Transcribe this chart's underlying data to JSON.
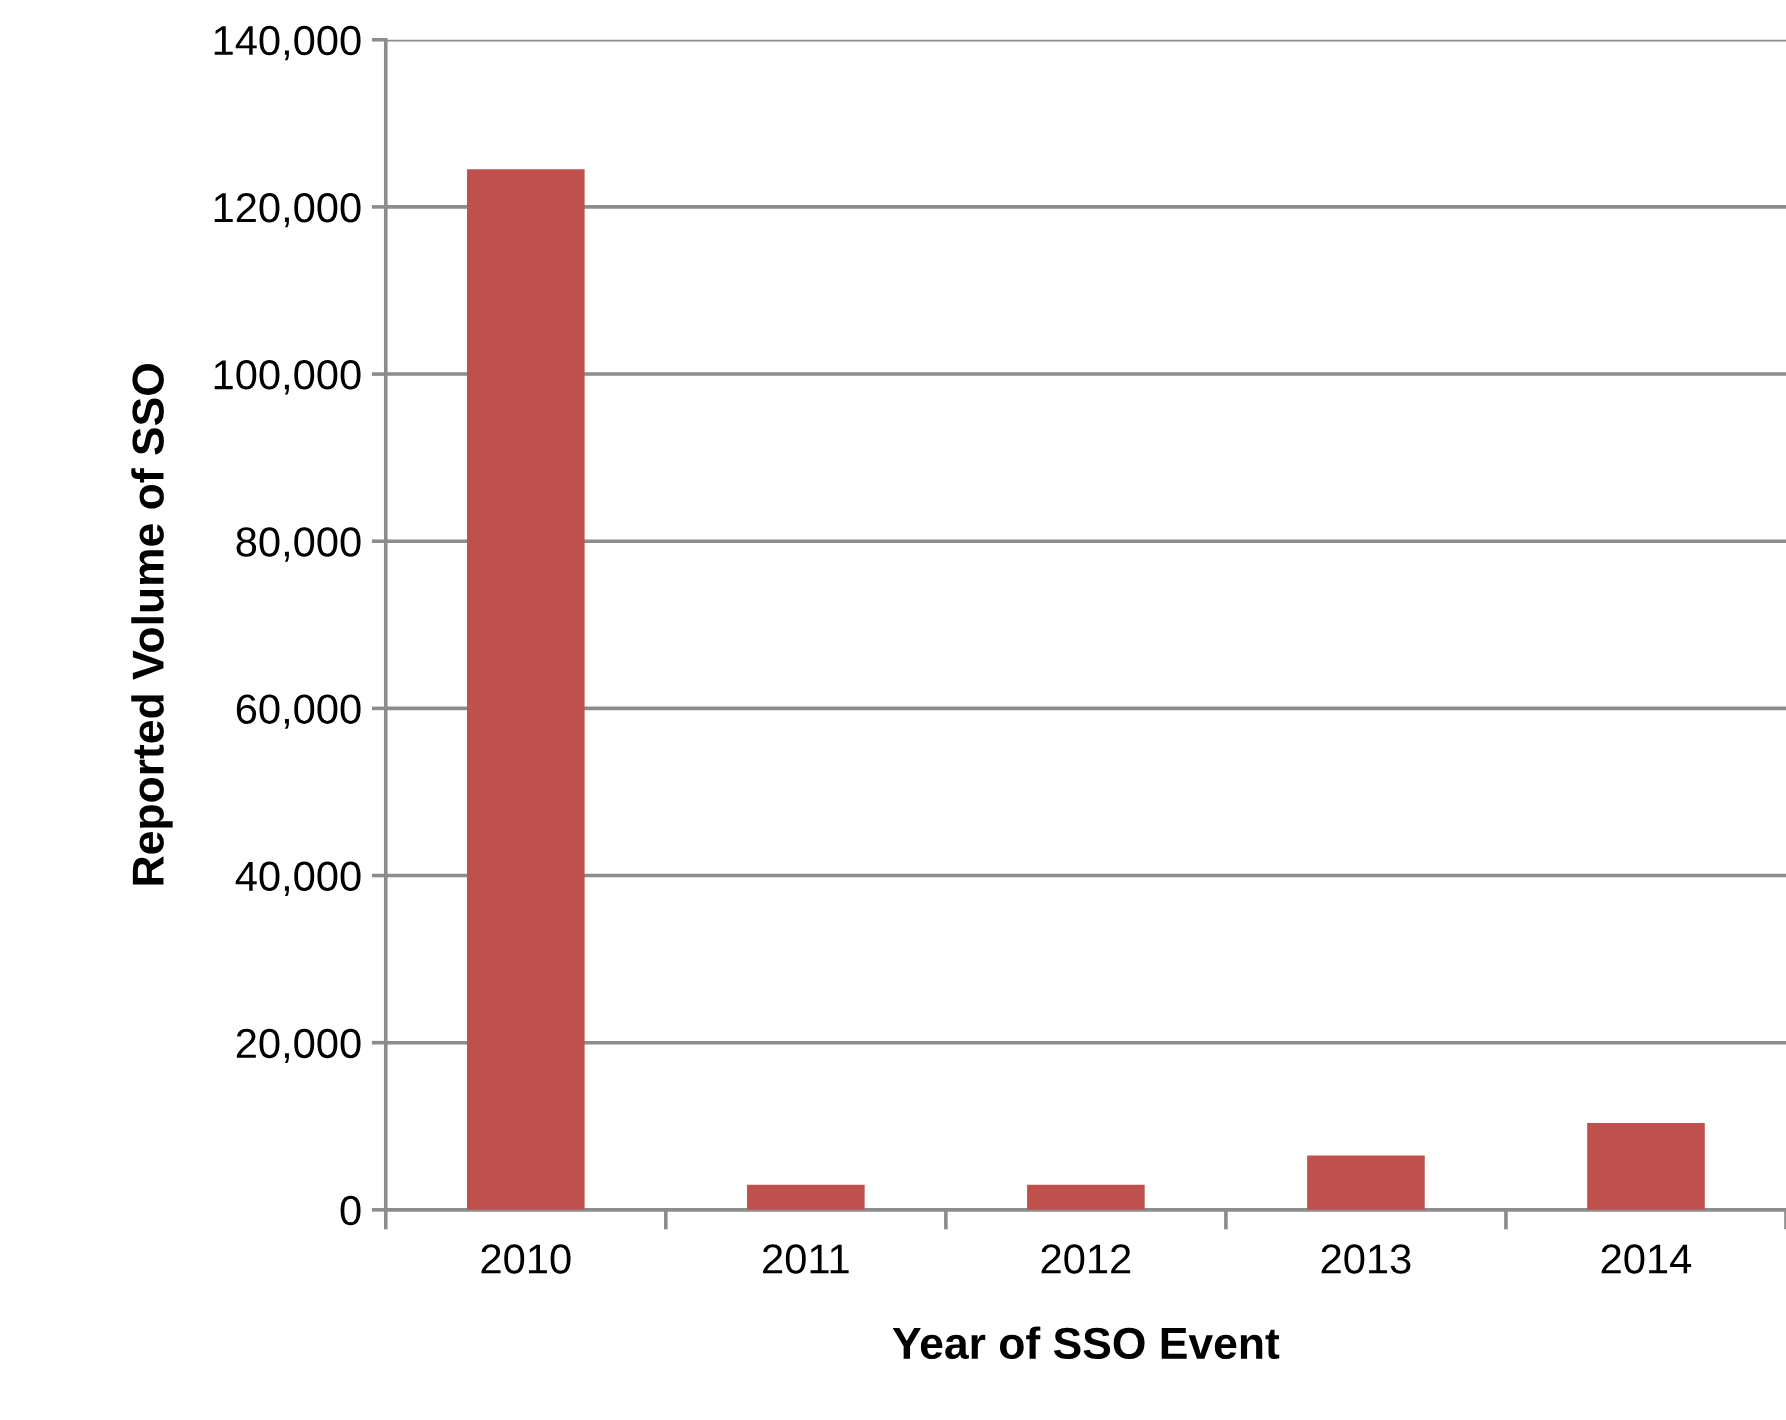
{
  "chart_data": {
    "type": "bar",
    "xlabel": "Year of SSO Event",
    "ylabel": "Reported Volume of SSO",
    "categories": [
      "2010",
      "2011",
      "2012",
      "2013",
      "2014"
    ],
    "values": [
      124500,
      3000,
      3000,
      6500,
      10400
    ],
    "color": "#c0504d",
    "ylim": [
      0,
      140000
    ],
    "yticks": [
      {
        "value": 0,
        "label": "0"
      },
      {
        "value": 20000,
        "label": "20,000"
      },
      {
        "value": 40000,
        "label": "40,000"
      },
      {
        "value": 60000,
        "label": "60,000"
      },
      {
        "value": 80000,
        "label": "80,000"
      },
      {
        "value": 100000,
        "label": "100,000"
      },
      {
        "value": 120000,
        "label": "120,000"
      },
      {
        "value": 140000,
        "label": "140,000"
      }
    ],
    "grid": "y"
  }
}
